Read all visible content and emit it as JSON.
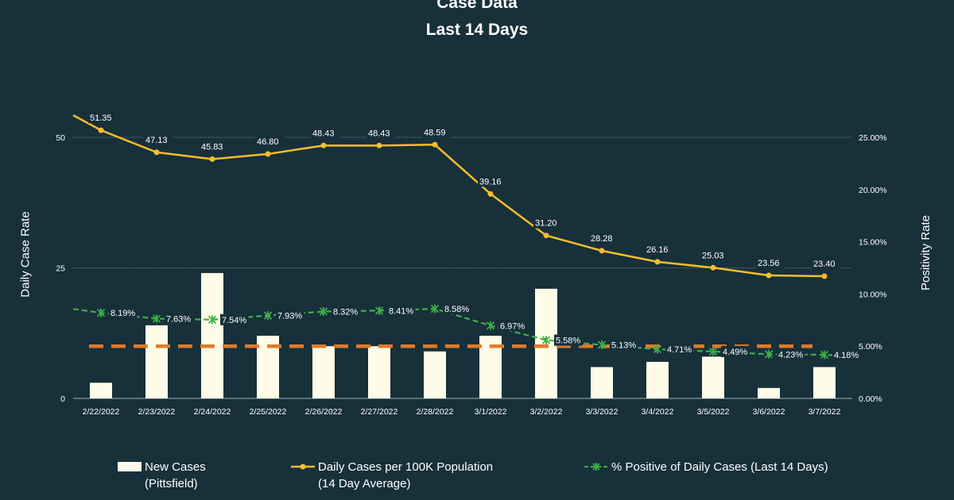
{
  "chart_data": {
    "type": "bar+line",
    "title": "Case Data",
    "subtitle": "Last 14 Days",
    "ylabel": "Daily Case Rate",
    "ylabel_right": "Positivity Rate",
    "ylim": [
      0,
      50
    ],
    "yticks": [
      0,
      25,
      50
    ],
    "ylim_right": [
      0,
      25
    ],
    "yticks_right": [
      "0.00%",
      "5.00%",
      "10.00%",
      "15.00%",
      "20.00%",
      "25.00%"
    ],
    "categories": [
      "2/22/2022",
      "2/23/2022",
      "2/24/2022",
      "2/25/2022",
      "2/26/2022",
      "2/27/2022",
      "2/28/2022",
      "3/1/2022",
      "3/2/2022",
      "3/3/2022",
      "3/4/2022",
      "3/5/2022",
      "3/6/2022",
      "3/7/2022"
    ],
    "grid": "horizontal at left-axis ticks",
    "legend_position": "bottom",
    "series": [
      {
        "name": "New Cases (Pittsfield)",
        "legend_lines": [
          "New Cases",
          "(Pittsfield)"
        ],
        "type": "bar",
        "axis": "left",
        "color": "#fefbe6",
        "values": [
          3,
          14,
          24,
          12,
          10,
          10,
          9,
          12,
          21,
          6,
          7,
          8,
          2,
          6
        ]
      },
      {
        "name": "Daily Cases per 100K Population (14 Day Average)",
        "legend_lines": [
          "Daily Cases per 100K Population",
          "(14 Day Average)"
        ],
        "type": "line",
        "axis": "left",
        "color": "#f6be2c",
        "values": [
          51.35,
          47.13,
          45.83,
          46.8,
          48.43,
          48.43,
          48.59,
          39.16,
          31.2,
          28.28,
          26.16,
          25.03,
          23.56,
          23.4
        ],
        "labels": [
          "51.35",
          "47.13",
          "45.83",
          "46.80",
          "48.43",
          "48.43",
          "48.59",
          "39.16",
          "31.20",
          "28.28",
          "26.16",
          "25.03",
          "23.56",
          "23.40"
        ]
      },
      {
        "name": "% Positive of Daily Cases (Last 14 Days)",
        "legend_lines": [
          "% Positive of Daily Cases (Last 14 Days)"
        ],
        "type": "line",
        "axis": "right",
        "style": "dashed",
        "color": "#3fae49",
        "values": [
          8.19,
          7.63,
          7.54,
          7.93,
          8.32,
          8.41,
          8.58,
          6.97,
          5.58,
          5.13,
          4.71,
          4.49,
          4.23,
          4.18
        ],
        "labels": [
          "8.19%",
          "7.63%",
          "7.54%",
          "7.93%",
          "8.32%",
          "8.41%",
          "8.58%",
          "6.97%",
          "5.58%",
          "5.13%",
          "4.71%",
          "4.49%",
          "4.23%",
          "4.18%"
        ]
      }
    ],
    "reference_line": {
      "axis": "right",
      "value": 5.0,
      "color": "#e07b2a",
      "style": "dashed"
    }
  }
}
